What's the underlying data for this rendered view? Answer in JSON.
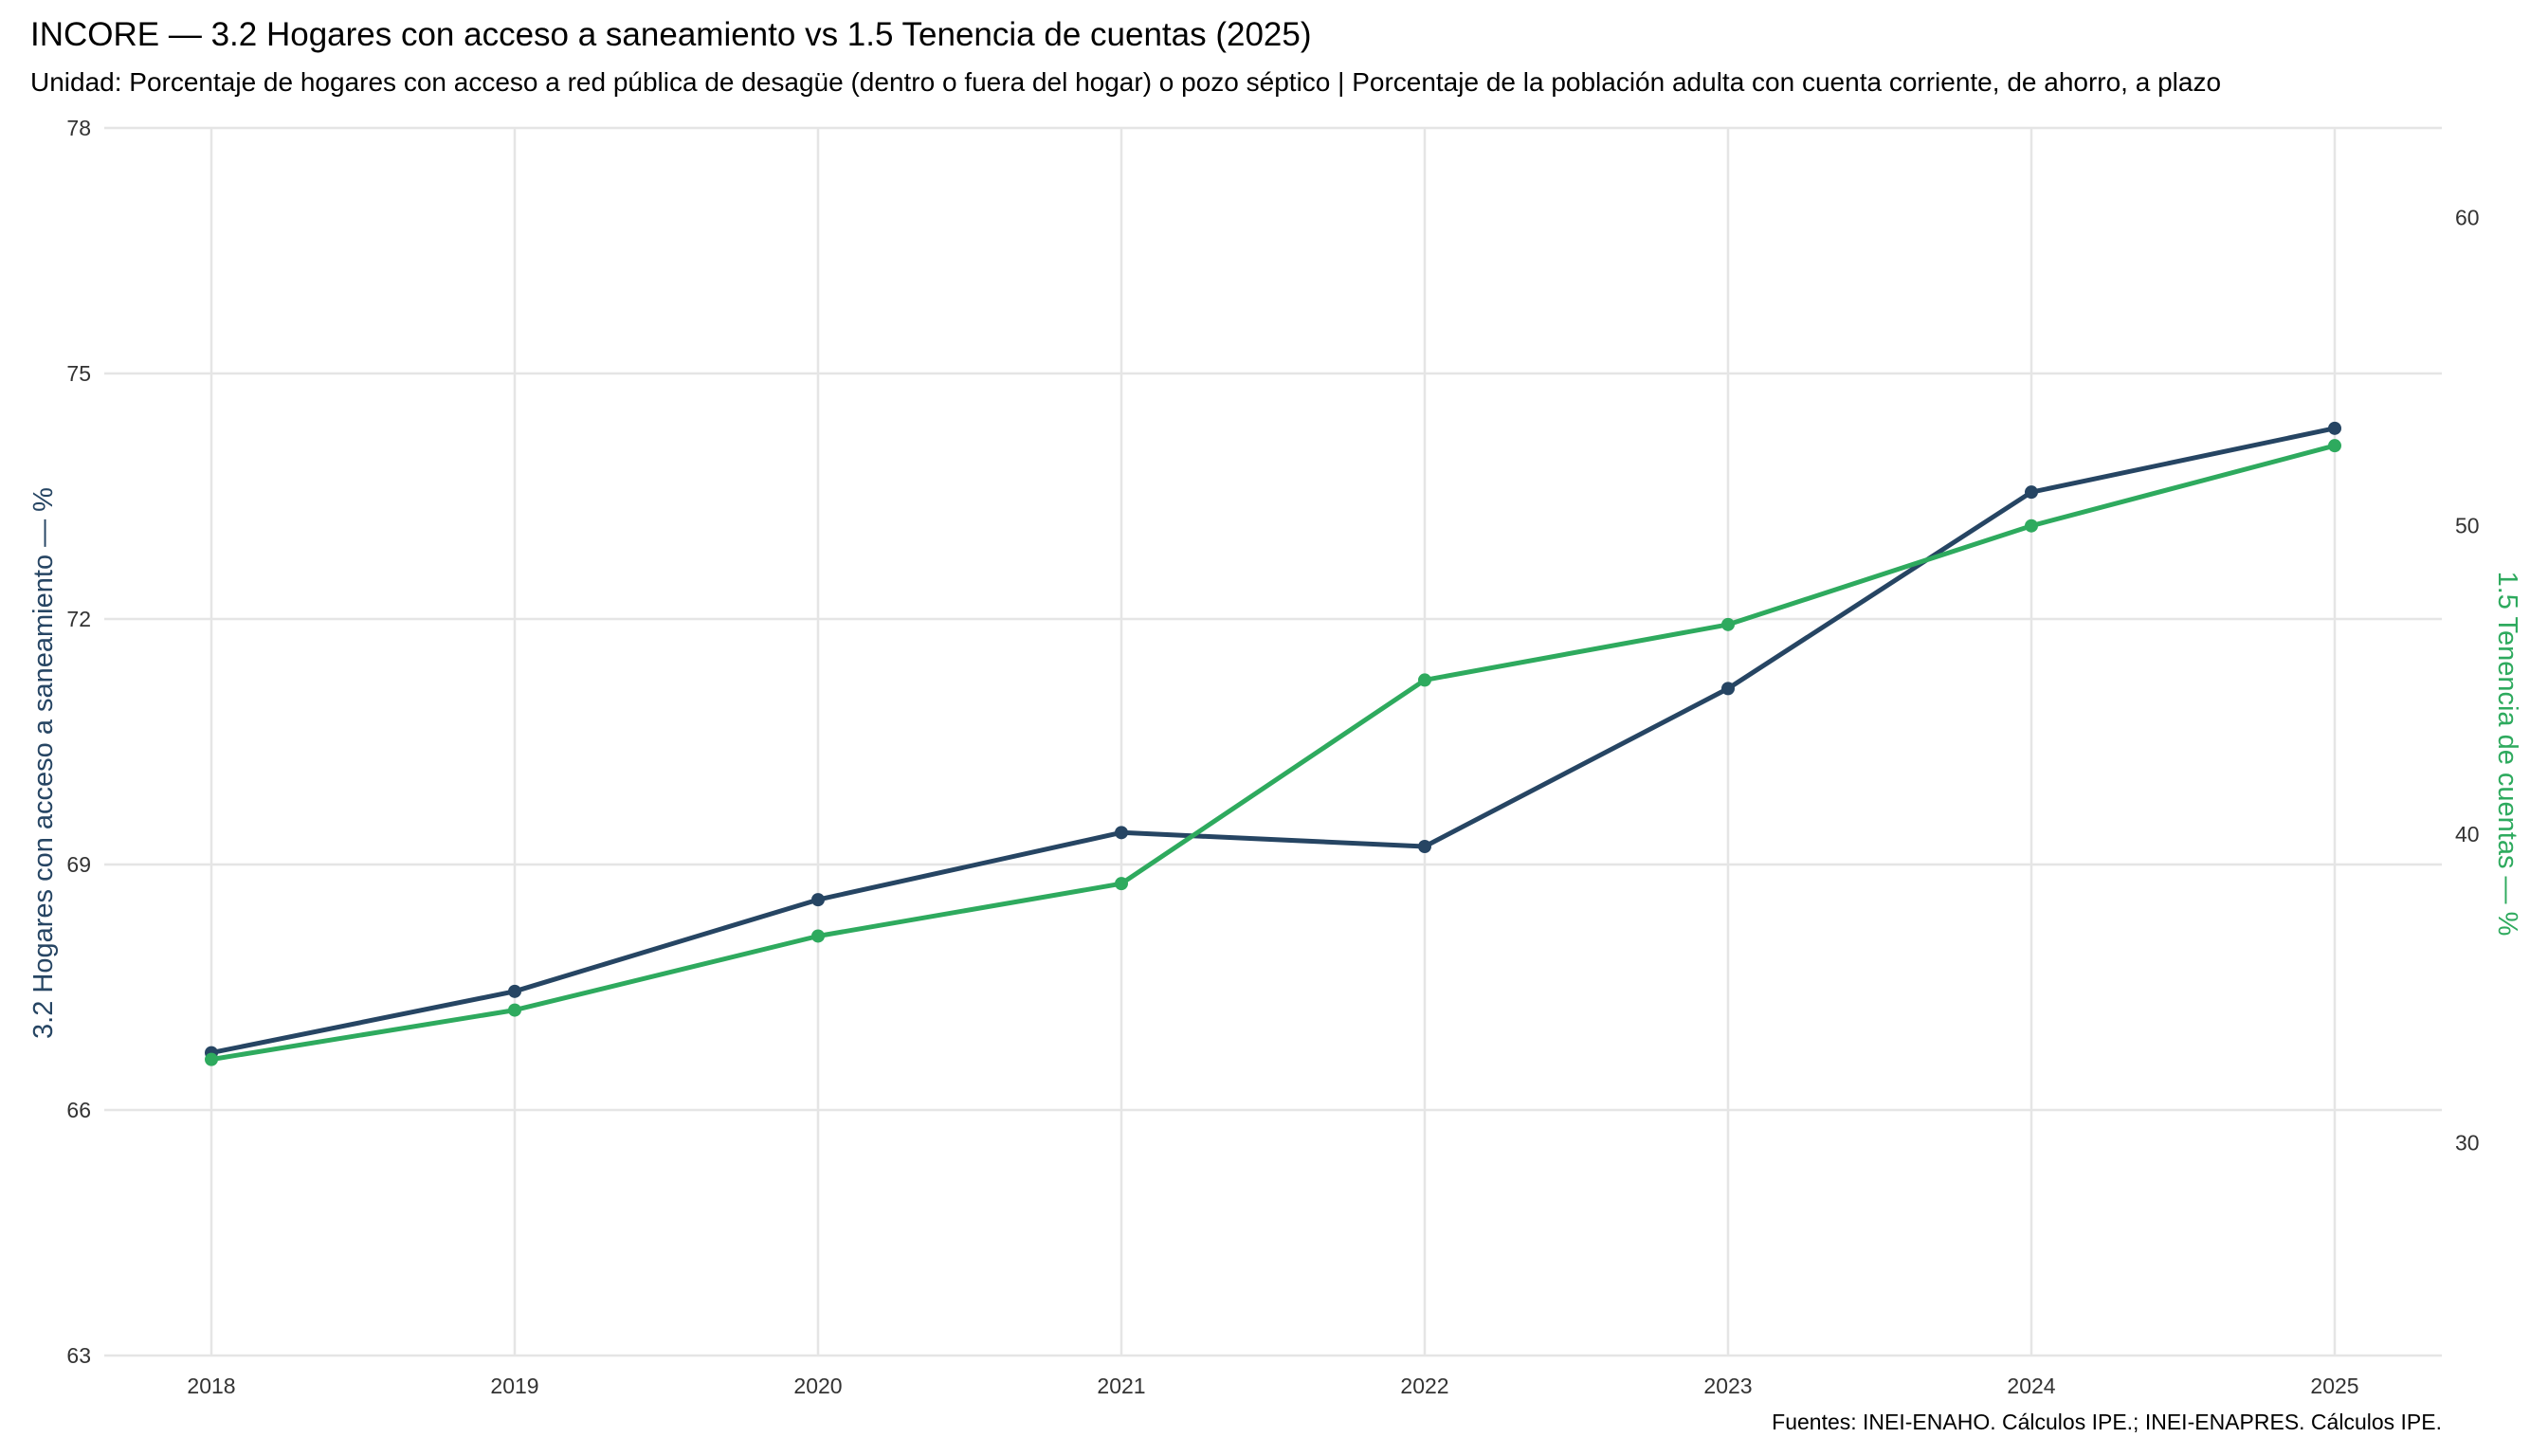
{
  "chart_data": {
    "type": "line",
    "title": "INCORE — 3.2 Hogares con acceso a saneamiento  vs  1.5 Tenencia de cuentas (2025)",
    "subtitle": "Unidad: Porcentaje de hogares con acceso a red pública de desagüe (dentro o fuera del hogar) o pozo séptico  |  Porcentaje de la población adulta con cuenta corriente, de ahorro, a plazo",
    "caption": "Fuentes: INEI-ENAHO. Cálculos IPE.; INEI-ENAPRES. Cálculos IPE.",
    "x": [
      2018,
      2019,
      2020,
      2021,
      2022,
      2023,
      2024,
      2025
    ],
    "x_tick_labels": [
      "2018",
      "2019",
      "2020",
      "2021",
      "2022",
      "2023",
      "2024",
      "2025"
    ],
    "y_left": {
      "label": "3.2 Hogares con acceso a saneamiento — %",
      "ticks": [
        63,
        66,
        69,
        72,
        75,
        78
      ],
      "range": [
        63,
        78
      ]
    },
    "y_right": {
      "label": "1.5 Tenencia de cuentas — %",
      "ticks": [
        30,
        40,
        50,
        60
      ],
      "range": [
        23.1,
        62.9
      ]
    },
    "series": [
      {
        "name": "3.2 Hogares con acceso a saneamiento",
        "axis": "left",
        "color": "#264563",
        "values": [
          66.7,
          67.45,
          68.57,
          69.39,
          69.22,
          71.15,
          73.55,
          74.33
        ]
      },
      {
        "name": "1.5 Tenencia de cuentas",
        "axis": "right",
        "color": "#2eaa5e",
        "values": [
          32.7,
          34.3,
          36.7,
          38.4,
          45.0,
          46.8,
          50.0,
          52.6
        ]
      }
    ],
    "grid": true,
    "legend": "none"
  }
}
